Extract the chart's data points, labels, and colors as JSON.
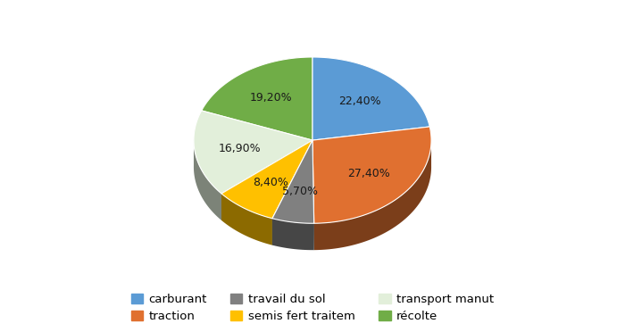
{
  "labels": [
    "carburant",
    "traction",
    "travail du sol",
    "semis fert traitem",
    "transport manut",
    "récolte"
  ],
  "values": [
    22.4,
    27.4,
    5.7,
    8.4,
    16.9,
    19.2
  ],
  "colors": [
    "#5B9BD5",
    "#E07030",
    "#808080",
    "#FFC000",
    "#E2EFDA",
    "#70AD47"
  ],
  "pct_labels": [
    "22,40%",
    "27,40%",
    "5,70%",
    "8,40%",
    "16,90%",
    "19,20%"
  ],
  "background_color": "#FFFFFF",
  "figsize": [
    7.0,
    3.72
  ],
  "dpi": 100
}
